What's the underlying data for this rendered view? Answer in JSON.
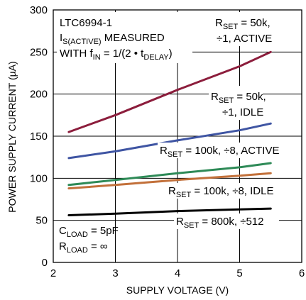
{
  "chart_data": {
    "type": "line",
    "xlabel": "SUPPLY VOLTAGE (V)",
    "ylabel": "POWER SUPPLY CURRENT (µA)",
    "xlim": [
      2,
      6
    ],
    "ylim": [
      0,
      300
    ],
    "x_ticks": [
      "2",
      "3",
      "4",
      "5",
      "6"
    ],
    "y_ticks": [
      "0",
      "50",
      "100",
      "150",
      "200",
      "250",
      "300"
    ],
    "grid": true,
    "series": [
      {
        "name": "RSET = 50k, ÷1, ACTIVE",
        "color": "#8c1d3c",
        "x": [
          2.25,
          3.0,
          4.0,
          5.0,
          5.5
        ],
        "y": [
          155,
          175,
          205,
          233,
          250
        ]
      },
      {
        "name": "RSET = 50k, ÷1, IDLE",
        "color": "#3f55a3",
        "x": [
          2.25,
          3.0,
          4.0,
          5.0,
          5.5
        ],
        "y": [
          124,
          132,
          145,
          157,
          165
        ]
      },
      {
        "name": "RSET = 100k, ÷8, ACTIVE",
        "color": "#2e8a57",
        "x": [
          2.25,
          3.0,
          4.0,
          5.0,
          5.5
        ],
        "y": [
          92,
          98,
          106,
          113,
          118
        ]
      },
      {
        "name": "RSET = 100k, ÷8, IDLE",
        "color": "#c2703a",
        "x": [
          2.25,
          3.0,
          4.0,
          5.0,
          5.5
        ],
        "y": [
          88,
          92,
          98,
          103,
          106
        ]
      },
      {
        "name": "RSET = 800k, ÷512",
        "color": "#000000",
        "x": [
          2.25,
          3.0,
          4.0,
          5.0,
          5.5
        ],
        "y": [
          56,
          58,
          61,
          63,
          64
        ]
      }
    ],
    "annotations": {
      "title": {
        "line1": "LTC6994-1",
        "line2_main": "I",
        "line2_sub": "S(ACTIVE)",
        "line2_rest": " MEASURED",
        "line3_main": "WITH f",
        "line3_sub": "IN",
        "line3_rest": " = 1/(2 • t",
        "line3_sub2": "DELAY",
        "line3_end": ")"
      },
      "labels": [
        {
          "main": "R",
          "sub": "SET",
          "line1": " = 50k,",
          "line2": "÷1, ACTIVE"
        },
        {
          "main": "R",
          "sub": "SET",
          "line1": " = 50k,",
          "line2": "÷1, IDLE"
        },
        {
          "main": "R",
          "sub": "SET",
          "line1": " = 100k, ÷8, ACTIVE"
        },
        {
          "main": "R",
          "sub": "SET",
          "line1": " = 100k, ÷8, IDLE"
        },
        {
          "main": "R",
          "sub": "SET",
          "line1": " = 800k, ÷512"
        }
      ],
      "conditions": {
        "c_main": "C",
        "c_sub": "LOAD",
        "c_rest": " = 5pF",
        "r_main": "R",
        "r_sub": "LOAD",
        "r_rest": " = ∞"
      }
    }
  }
}
